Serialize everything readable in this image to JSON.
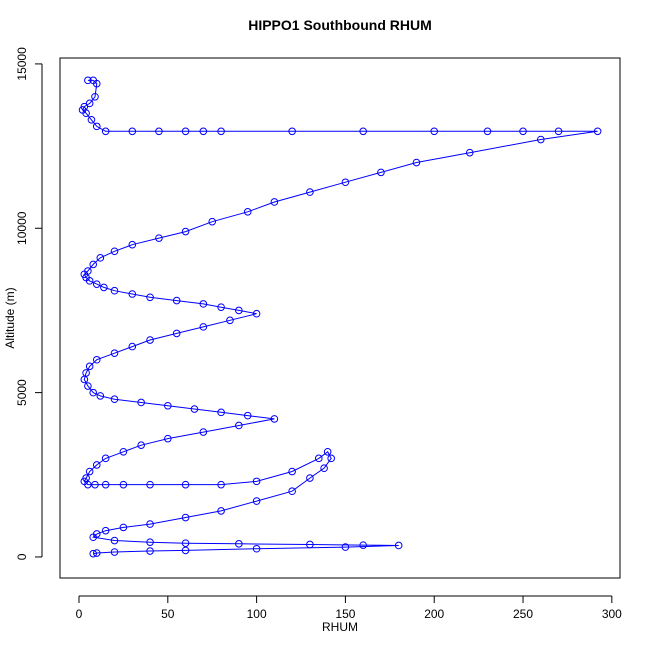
{
  "chart_data": {
    "type": "line",
    "title": "HIPPO1 Southbound RHUM",
    "x_label": "RHUM",
    "y_label": "Altitude (m)",
    "marker": "circle",
    "xlim": [
      -10.7,
      304.6
    ],
    "ylim": [
      -640,
      15180
    ],
    "xticks": [
      0,
      50,
      100,
      150,
      200,
      250,
      300
    ],
    "yticks": [
      0,
      5000,
      10000,
      15000
    ],
    "series": [
      {
        "color": "#0000ff",
        "x": [
          5,
          8,
          10,
          9,
          6,
          3,
          2,
          4,
          7,
          10,
          15,
          30,
          45,
          60,
          70,
          80,
          120,
          160,
          200,
          230,
          250,
          270,
          292,
          260,
          220,
          190,
          170,
          150,
          130,
          110,
          95,
          75,
          60,
          45,
          30,
          20,
          12,
          8,
          5,
          3,
          4,
          6,
          10,
          14,
          20,
          30,
          40,
          55,
          70,
          80,
          90,
          100,
          85,
          70,
          55,
          40,
          30,
          20,
          10,
          6,
          4,
          3,
          5,
          8,
          12,
          20,
          35,
          50,
          65,
          80,
          95,
          110,
          90,
          70,
          50,
          35,
          25,
          15,
          10,
          6,
          4,
          3,
          5,
          9,
          15,
          25,
          40,
          60,
          80,
          100,
          120,
          135,
          140,
          142,
          138,
          130,
          120,
          100,
          80,
          60,
          40,
          25,
          15,
          10,
          8,
          20,
          40,
          60,
          90,
          130,
          160,
          180,
          150,
          100,
          60,
          40,
          20,
          10,
          8
        ],
        "values": [
          14500,
          14500,
          14400,
          14000,
          13800,
          13700,
          13600,
          13500,
          13300,
          13100,
          12950,
          12950,
          12950,
          12950,
          12950,
          12950,
          12950,
          12950,
          12950,
          12950,
          12950,
          12950,
          12950,
          12700,
          12300,
          12000,
          11700,
          11400,
          11100,
          10800,
          10500,
          10200,
          9900,
          9700,
          9500,
          9300,
          9100,
          8900,
          8700,
          8600,
          8500,
          8400,
          8300,
          8200,
          8100,
          8000,
          7900,
          7800,
          7700,
          7600,
          7500,
          7400,
          7200,
          7000,
          6800,
          6600,
          6400,
          6200,
          6000,
          5800,
          5600,
          5400,
          5200,
          5000,
          4900,
          4800,
          4700,
          4600,
          4500,
          4400,
          4300,
          4200,
          4000,
          3800,
          3600,
          3400,
          3200,
          3000,
          2800,
          2600,
          2400,
          2300,
          2200,
          2200,
          2200,
          2200,
          2200,
          2200,
          2200,
          2300,
          2600,
          3000,
          3200,
          3000,
          2700,
          2400,
          2000,
          1700,
          1400,
          1200,
          1000,
          900,
          800,
          700,
          600,
          500,
          450,
          420,
          400,
          380,
          360,
          350,
          300,
          250,
          200,
          180,
          150,
          120,
          100
        ]
      }
    ]
  }
}
